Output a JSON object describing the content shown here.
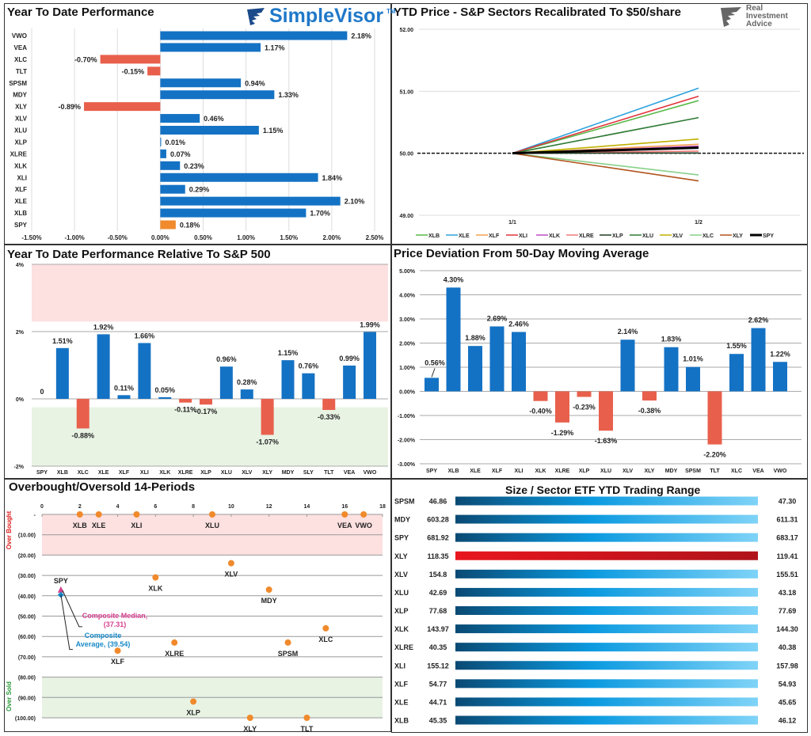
{
  "colors": {
    "positive": "#1472c4",
    "negative": "#e8604c",
    "spy": "#f08a2c",
    "overbought_band": "#fde0e0",
    "oversold_band": "#e8f3e4",
    "dot": "#f08a2c",
    "median": "#d6408f",
    "average": "#1a8ac8",
    "range_bar_start": "#0a4a74",
    "range_bar_mid": "#0b9ae0",
    "range_bar_end": "#7fd3f7",
    "range_bar_red_start": "#e8161e",
    "range_bar_red_end": "#b0131a"
  },
  "logos": {
    "simplevisor": "SimpleVisor",
    "simplevisor_tm": "TM",
    "ria_lines": [
      "Real",
      "Investment",
      "Advice"
    ]
  },
  "chart_data": [
    {
      "id": "ytd",
      "type": "bar",
      "orientation": "horizontal",
      "title": "Year To Date Performance",
      "categories": [
        "VWO",
        "VEA",
        "XLC",
        "TLT",
        "SPSM",
        "MDY",
        "XLY",
        "XLV",
        "XLU",
        "XLP",
        "XLRE",
        "XLK",
        "XLI",
        "XLF",
        "XLE",
        "XLB",
        "SPY"
      ],
      "values": [
        2.18,
        1.17,
        -0.7,
        -0.15,
        0.94,
        1.33,
        -0.89,
        0.46,
        1.15,
        0.01,
        0.07,
        0.23,
        1.84,
        0.29,
        2.1,
        1.7,
        0.18
      ],
      "labels": [
        "2.18%",
        "1.17%",
        "-0.70%",
        "-0.15%",
        "0.94%",
        "1.33%",
        "-0.89%",
        "0.46%",
        "1.15%",
        "0.01%",
        "0.07%",
        "0.23%",
        "1.84%",
        "0.29%",
        "2.10%",
        "1.70%",
        "0.18%"
      ],
      "xlim": [
        -1.5,
        2.5
      ],
      "xticks": [
        "-1.50%",
        "-1.00%",
        "-0.50%",
        "0.00%",
        "0.50%",
        "1.00%",
        "1.50%",
        "2.00%",
        "2.50%"
      ],
      "grid": "vertical"
    },
    {
      "id": "recal",
      "type": "line",
      "title": "YTD Price - S&P Sectors Recalibrated To $50/share",
      "x": [
        "1/1",
        "1/2"
      ],
      "ylim": [
        49,
        52
      ],
      "yticks": [
        "49.00",
        "50.00",
        "51.00",
        "52.00"
      ],
      "legend": "bottom",
      "reference_line": 50,
      "series": [
        {
          "name": "XLB",
          "color": "#58b848",
          "values": [
            50,
            50.85
          ]
        },
        {
          "name": "XLE",
          "color": "#2aa2dc",
          "values": [
            50,
            51.05
          ]
        },
        {
          "name": "XLF",
          "color": "#f4a050",
          "values": [
            50,
            50.145
          ]
        },
        {
          "name": "XLI",
          "color": "#e0343c",
          "values": [
            50,
            50.92
          ]
        },
        {
          "name": "XLK",
          "color": "#c04cc0",
          "values": [
            50,
            50.115
          ]
        },
        {
          "name": "XLRE",
          "color": "#f07a7a",
          "values": [
            50,
            50.035
          ]
        },
        {
          "name": "XLP",
          "color": "#1d3d24",
          "values": [
            50,
            50.005
          ]
        },
        {
          "name": "XLU",
          "color": "#2e7a34",
          "values": [
            50,
            50.575
          ]
        },
        {
          "name": "XLV",
          "color": "#c0b000",
          "values": [
            50,
            50.23
          ]
        },
        {
          "name": "XLC",
          "color": "#88d08a",
          "values": [
            50,
            49.65
          ]
        },
        {
          "name": "XLY",
          "color": "#b0541c",
          "values": [
            50,
            49.555
          ]
        },
        {
          "name": "SPY",
          "color": "#000000",
          "values": [
            50,
            50.09
          ]
        }
      ]
    },
    {
      "id": "rel",
      "type": "bar",
      "title": "Year To Date Performance Relative To S&P 500",
      "categories": [
        "SPY",
        "XLB",
        "XLC",
        "XLE",
        "XLF",
        "XLI",
        "XLK",
        "XLRE",
        "XLP",
        "XLU",
        "XLV",
        "XLY",
        "MDY",
        "SLY",
        "TLT",
        "VEA",
        "VWO"
      ],
      "values": [
        0,
        1.51,
        -0.88,
        1.92,
        0.11,
        1.66,
        0.05,
        -0.11,
        -0.17,
        0.96,
        0.28,
        -1.07,
        1.15,
        0.76,
        -0.33,
        0.99,
        1.99
      ],
      "labels": [
        "0",
        "1.51%",
        "-0.88%",
        "1.92%",
        "0.11%",
        "1.66%",
        "0.05%",
        "-0.11%",
        "-0.17%",
        "0.96%",
        "0.28%",
        "-1.07%",
        "1.15%",
        "0.76%",
        "-0.33%",
        "0.99%",
        "1.99%"
      ],
      "ylim": [
        -2,
        4
      ],
      "yticks": [
        "-2%",
        "0%",
        "2%",
        "4%"
      ],
      "bands": {
        "overbought": [
          2.3,
          4
        ],
        "oversold": [
          -2,
          -0.25
        ]
      }
    },
    {
      "id": "dev",
      "type": "bar",
      "title": "Price Deviation From 50-Day Moving Average",
      "categories": [
        "SPY",
        "XLB",
        "XLE",
        "XLF",
        "XLI",
        "XLK",
        "XLRE",
        "XLP",
        "XLU",
        "XLV",
        "XLY",
        "MDY",
        "SPSM",
        "TLT",
        "XLC",
        "VEA",
        "VWO"
      ],
      "values": [
        0.56,
        4.3,
        1.88,
        2.69,
        2.46,
        -0.4,
        -1.29,
        -0.23,
        -1.63,
        2.14,
        -0.38,
        1.83,
        1.01,
        -2.2,
        1.55,
        2.62,
        1.22
      ],
      "labels": [
        "0.56%",
        "4.30%",
        "1.88%",
        "2.69%",
        "2.46%",
        "-0.40%",
        "-1.29%",
        "-0.23%",
        "-1.63%",
        "2.14%",
        "-0.38%",
        "1.83%",
        "1.01%",
        "-2.20%",
        "1.55%",
        "2.62%",
        "1.22%"
      ],
      "ylim": [
        -3,
        5
      ],
      "yticks": [
        "-3.00%",
        "-2.00%",
        "-1.00%",
        "0.00%",
        "1.00%",
        "2.00%",
        "3.00%",
        "4.00%",
        "5.00%"
      ],
      "grid": "horizontal"
    },
    {
      "id": "obos",
      "type": "scatter",
      "title": "Overbought/Oversold 14-Periods",
      "xlim": [
        0,
        18
      ],
      "xticks": [
        "0",
        "2",
        "4",
        "6",
        "8",
        "10",
        "12",
        "14",
        "16",
        "18"
      ],
      "ylim": [
        -100,
        0
      ],
      "yticks": [
        "-",
        "(10.00)",
        "(20.00)",
        "(30.00)",
        "(40.00)",
        "(50.00)",
        "(60.00)",
        "(70.00)",
        "(80.00)",
        "(90.00)",
        "(100.00)"
      ],
      "zone_labels": {
        "overbought": "Over Bought",
        "oversold": "Over Sold"
      },
      "bands": {
        "overbought": [
          -20,
          0
        ],
        "oversold": [
          -100,
          -80
        ]
      },
      "points": [
        {
          "label": "XLB",
          "x": 2,
          "y": 0
        },
        {
          "label": "XLE",
          "x": 3,
          "y": 0
        },
        {
          "label": "XLI",
          "x": 5,
          "y": 0
        },
        {
          "label": "XLU",
          "x": 9,
          "y": 0
        },
        {
          "label": "VEA",
          "x": 16,
          "y": 0
        },
        {
          "label": "VWO",
          "x": 17,
          "y": 0
        },
        {
          "label": "XLV",
          "x": 10,
          "y": -24
        },
        {
          "label": "XLK",
          "x": 6,
          "y": -31
        },
        {
          "label": "MDY",
          "x": 12,
          "y": -37
        },
        {
          "label": "XLC",
          "x": 15,
          "y": -56
        },
        {
          "label": "SPSM",
          "x": 13,
          "y": -63
        },
        {
          "label": "XLRE",
          "x": 7,
          "y": -63
        },
        {
          "label": "XLF",
          "x": 4,
          "y": -67
        },
        {
          "label": "XLP",
          "x": 8,
          "y": -92
        },
        {
          "label": "XLY",
          "x": 11,
          "y": -100
        },
        {
          "label": "TLT",
          "x": 14,
          "y": -100
        }
      ],
      "spy": {
        "label": "SPY",
        "x": 1,
        "median": -37.31,
        "average": -39.54
      },
      "annotations": {
        "median": [
          "Composite Median,",
          "(37.31)"
        ],
        "average": [
          "Composite",
          "Average,  (39.54)"
        ]
      }
    },
    {
      "id": "range",
      "type": "table",
      "title": "Size / Sector ETF YTD Trading Range",
      "rows": [
        {
          "ticker": "SPSM",
          "low": "46.86",
          "high": "47.30",
          "highlight": false
        },
        {
          "ticker": "MDY",
          "low": "603.28",
          "high": "611.31",
          "highlight": false
        },
        {
          "ticker": "SPY",
          "low": "681.92",
          "high": "683.17",
          "highlight": false
        },
        {
          "ticker": "XLY",
          "low": "118.35",
          "high": "119.41",
          "highlight": true
        },
        {
          "ticker": "XLV",
          "low": "154.8",
          "high": "155.51",
          "highlight": false
        },
        {
          "ticker": "XLU",
          "low": "42.69",
          "high": "43.18",
          "highlight": false
        },
        {
          "ticker": "XLP",
          "low": "77.68",
          "high": "77.69",
          "highlight": false
        },
        {
          "ticker": "XLK",
          "low": "143.97",
          "high": "144.30",
          "highlight": false
        },
        {
          "ticker": "XLRE",
          "low": "40.35",
          "high": "40.38",
          "highlight": false
        },
        {
          "ticker": "XLI",
          "low": "155.12",
          "high": "157.98",
          "highlight": false
        },
        {
          "ticker": "XLF",
          "low": "54.77",
          "high": "54.93",
          "highlight": false
        },
        {
          "ticker": "XLE",
          "low": "44.71",
          "high": "45.65",
          "highlight": false
        },
        {
          "ticker": "XLB",
          "low": "45.35",
          "high": "46.12",
          "highlight": false
        }
      ]
    }
  ]
}
